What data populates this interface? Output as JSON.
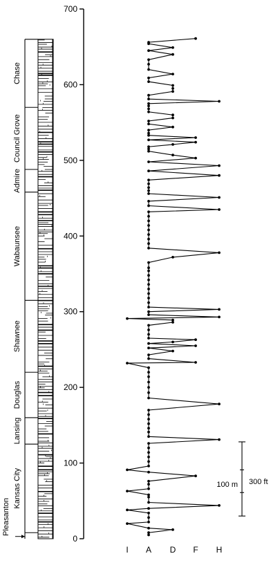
{
  "chart_data": {
    "type": "line",
    "title": "",
    "xlabel": "",
    "ylabel": "",
    "ylim": [
      0,
      700
    ],
    "y_ticks": [
      "0",
      "100",
      "200",
      "300",
      "400",
      "500",
      "600",
      "700"
    ],
    "x_categories": [
      "I",
      "A",
      "D",
      "F",
      "H"
    ],
    "series": [
      {
        "points": [
          {
            "y": 5,
            "x": "A"
          },
          {
            "y": 8,
            "x": "A"
          },
          {
            "y": 12,
            "x": "D"
          },
          {
            "y": 14,
            "x": "A"
          },
          {
            "y": 20,
            "x": "I"
          },
          {
            "y": 22,
            "x": "A"
          },
          {
            "y": 28,
            "x": "A"
          },
          {
            "y": 34,
            "x": "A"
          },
          {
            "y": 38,
            "x": "I"
          },
          {
            "y": 40,
            "x": "A"
          },
          {
            "y": 44,
            "x": "H"
          },
          {
            "y": 48,
            "x": "A"
          },
          {
            "y": 55,
            "x": "A"
          },
          {
            "y": 58,
            "x": "A"
          },
          {
            "y": 63,
            "x": "I"
          },
          {
            "y": 66,
            "x": "A"
          },
          {
            "y": 72,
            "x": "A"
          },
          {
            "y": 76,
            "x": "A"
          },
          {
            "y": 83,
            "x": "F"
          },
          {
            "y": 88,
            "x": "A"
          },
          {
            "y": 91,
            "x": "I"
          },
          {
            "y": 96,
            "x": "A"
          },
          {
            "y": 102,
            "x": "A"
          },
          {
            "y": 108,
            "x": "A"
          },
          {
            "y": 114,
            "x": "A"
          },
          {
            "y": 120,
            "x": "A"
          },
          {
            "y": 126,
            "x": "A"
          },
          {
            "y": 131,
            "x": "H"
          },
          {
            "y": 135,
            "x": "A"
          },
          {
            "y": 141,
            "x": "A"
          },
          {
            "y": 146,
            "x": "A"
          },
          {
            "y": 152,
            "x": "A"
          },
          {
            "y": 158,
            "x": "A"
          },
          {
            "y": 164,
            "x": "A"
          },
          {
            "y": 170,
            "x": "A"
          },
          {
            "y": 178,
            "x": "H"
          },
          {
            "y": 186,
            "x": "A"
          },
          {
            "y": 193,
            "x": "A"
          },
          {
            "y": 200,
            "x": "A"
          },
          {
            "y": 207,
            "x": "A"
          },
          {
            "y": 214,
            "x": "A"
          },
          {
            "y": 220,
            "x": "A"
          },
          {
            "y": 226,
            "x": "A"
          },
          {
            "y": 232,
            "x": "I"
          },
          {
            "y": 233,
            "x": "F"
          },
          {
            "y": 238,
            "x": "A"
          },
          {
            "y": 243,
            "x": "A"
          },
          {
            "y": 248,
            "x": "D"
          },
          {
            "y": 252,
            "x": "A"
          },
          {
            "y": 255,
            "x": "F"
          },
          {
            "y": 258,
            "x": "A"
          },
          {
            "y": 260,
            "x": "D"
          },
          {
            "y": 263,
            "x": "F"
          },
          {
            "y": 265,
            "x": "A"
          },
          {
            "y": 270,
            "x": "A"
          },
          {
            "y": 276,
            "x": "A"
          },
          {
            "y": 282,
            "x": "A"
          },
          {
            "y": 286,
            "x": "D"
          },
          {
            "y": 289,
            "x": "D"
          },
          {
            "y": 291,
            "x": "I"
          },
          {
            "y": 293,
            "x": "H"
          },
          {
            "y": 296,
            "x": "A"
          },
          {
            "y": 300,
            "x": "A"
          },
          {
            "y": 303,
            "x": "H"
          },
          {
            "y": 306,
            "x": "A"
          },
          {
            "y": 312,
            "x": "A"
          },
          {
            "y": 318,
            "x": "A"
          },
          {
            "y": 324,
            "x": "A"
          },
          {
            "y": 330,
            "x": "A"
          },
          {
            "y": 336,
            "x": "A"
          },
          {
            "y": 342,
            "x": "A"
          },
          {
            "y": 348,
            "x": "A"
          },
          {
            "y": 354,
            "x": "A"
          },
          {
            "y": 358,
            "x": "A"
          },
          {
            "y": 365,
            "x": "A"
          },
          {
            "y": 372,
            "x": "D"
          },
          {
            "y": 378,
            "x": "H"
          },
          {
            "y": 384,
            "x": "A"
          },
          {
            "y": 390,
            "x": "A"
          },
          {
            "y": 396,
            "x": "A"
          },
          {
            "y": 402,
            "x": "A"
          },
          {
            "y": 408,
            "x": "A"
          },
          {
            "y": 414,
            "x": "A"
          },
          {
            "y": 420,
            "x": "A"
          },
          {
            "y": 426,
            "x": "A"
          },
          {
            "y": 432,
            "x": "A"
          },
          {
            "y": 435,
            "x": "H"
          },
          {
            "y": 440,
            "x": "A"
          },
          {
            "y": 446,
            "x": "A"
          },
          {
            "y": 451,
            "x": "H"
          },
          {
            "y": 456,
            "x": "A"
          },
          {
            "y": 460,
            "x": "A"
          },
          {
            "y": 464,
            "x": "A"
          },
          {
            "y": 469,
            "x": "A"
          },
          {
            "y": 474,
            "x": "A"
          },
          {
            "y": 480,
            "x": "H"
          },
          {
            "y": 486,
            "x": "A"
          },
          {
            "y": 493,
            "x": "H"
          },
          {
            "y": 498,
            "x": "A"
          },
          {
            "y": 503,
            "x": "F"
          },
          {
            "y": 507,
            "x": "D"
          },
          {
            "y": 512,
            "x": "A"
          },
          {
            "y": 515,
            "x": "A"
          },
          {
            "y": 518,
            "x": "A"
          },
          {
            "y": 521,
            "x": "D"
          },
          {
            "y": 524,
            "x": "F"
          },
          {
            "y": 527,
            "x": "A"
          },
          {
            "y": 530,
            "x": "F"
          },
          {
            "y": 533,
            "x": "A"
          },
          {
            "y": 536,
            "x": "A"
          },
          {
            "y": 540,
            "x": "A"
          },
          {
            "y": 544,
            "x": "D"
          },
          {
            "y": 548,
            "x": "A"
          },
          {
            "y": 552,
            "x": "A"
          },
          {
            "y": 556,
            "x": "D"
          },
          {
            "y": 560,
            "x": "D"
          },
          {
            "y": 564,
            "x": "A"
          },
          {
            "y": 568,
            "x": "A"
          },
          {
            "y": 572,
            "x": "A"
          },
          {
            "y": 575,
            "x": "A"
          },
          {
            "y": 578,
            "x": "H"
          },
          {
            "y": 581,
            "x": "A"
          },
          {
            "y": 586,
            "x": "A"
          },
          {
            "y": 591,
            "x": "D"
          },
          {
            "y": 595,
            "x": "D"
          },
          {
            "y": 599,
            "x": "D"
          },
          {
            "y": 604,
            "x": "A"
          },
          {
            "y": 609,
            "x": "A"
          },
          {
            "y": 614,
            "x": "D"
          },
          {
            "y": 620,
            "x": "A"
          },
          {
            "y": 627,
            "x": "A"
          },
          {
            "y": 633,
            "x": "A"
          },
          {
            "y": 640,
            "x": "D"
          },
          {
            "y": 645,
            "x": "A"
          },
          {
            "y": 649,
            "x": "D"
          },
          {
            "y": 654,
            "x": "A"
          },
          {
            "y": 656,
            "x": "A"
          },
          {
            "y": 661,
            "x": "F"
          }
        ]
      }
    ]
  },
  "column": {
    "groups": [
      {
        "label": "Pleasanton",
        "from": 0,
        "to": 8
      },
      {
        "label": "Kansas City",
        "from": 8,
        "to": 125
      },
      {
        "label": "Lansing",
        "from": 125,
        "to": 160
      },
      {
        "label": "Douglas",
        "from": 160,
        "to": 220
      },
      {
        "label": "Shawnee",
        "from": 220,
        "to": 315
      },
      {
        "label": "Wabaunsee",
        "from": 315,
        "to": 458
      },
      {
        "label": "Admire",
        "from": 458,
        "to": 488
      },
      {
        "label": "Council Grove",
        "from": 488,
        "to": 570
      },
      {
        "label": "Chase",
        "from": 570,
        "to": 660
      }
    ]
  },
  "scale_bar": {
    "metric_label": "100 m",
    "imperial_label": "300 ft"
  }
}
